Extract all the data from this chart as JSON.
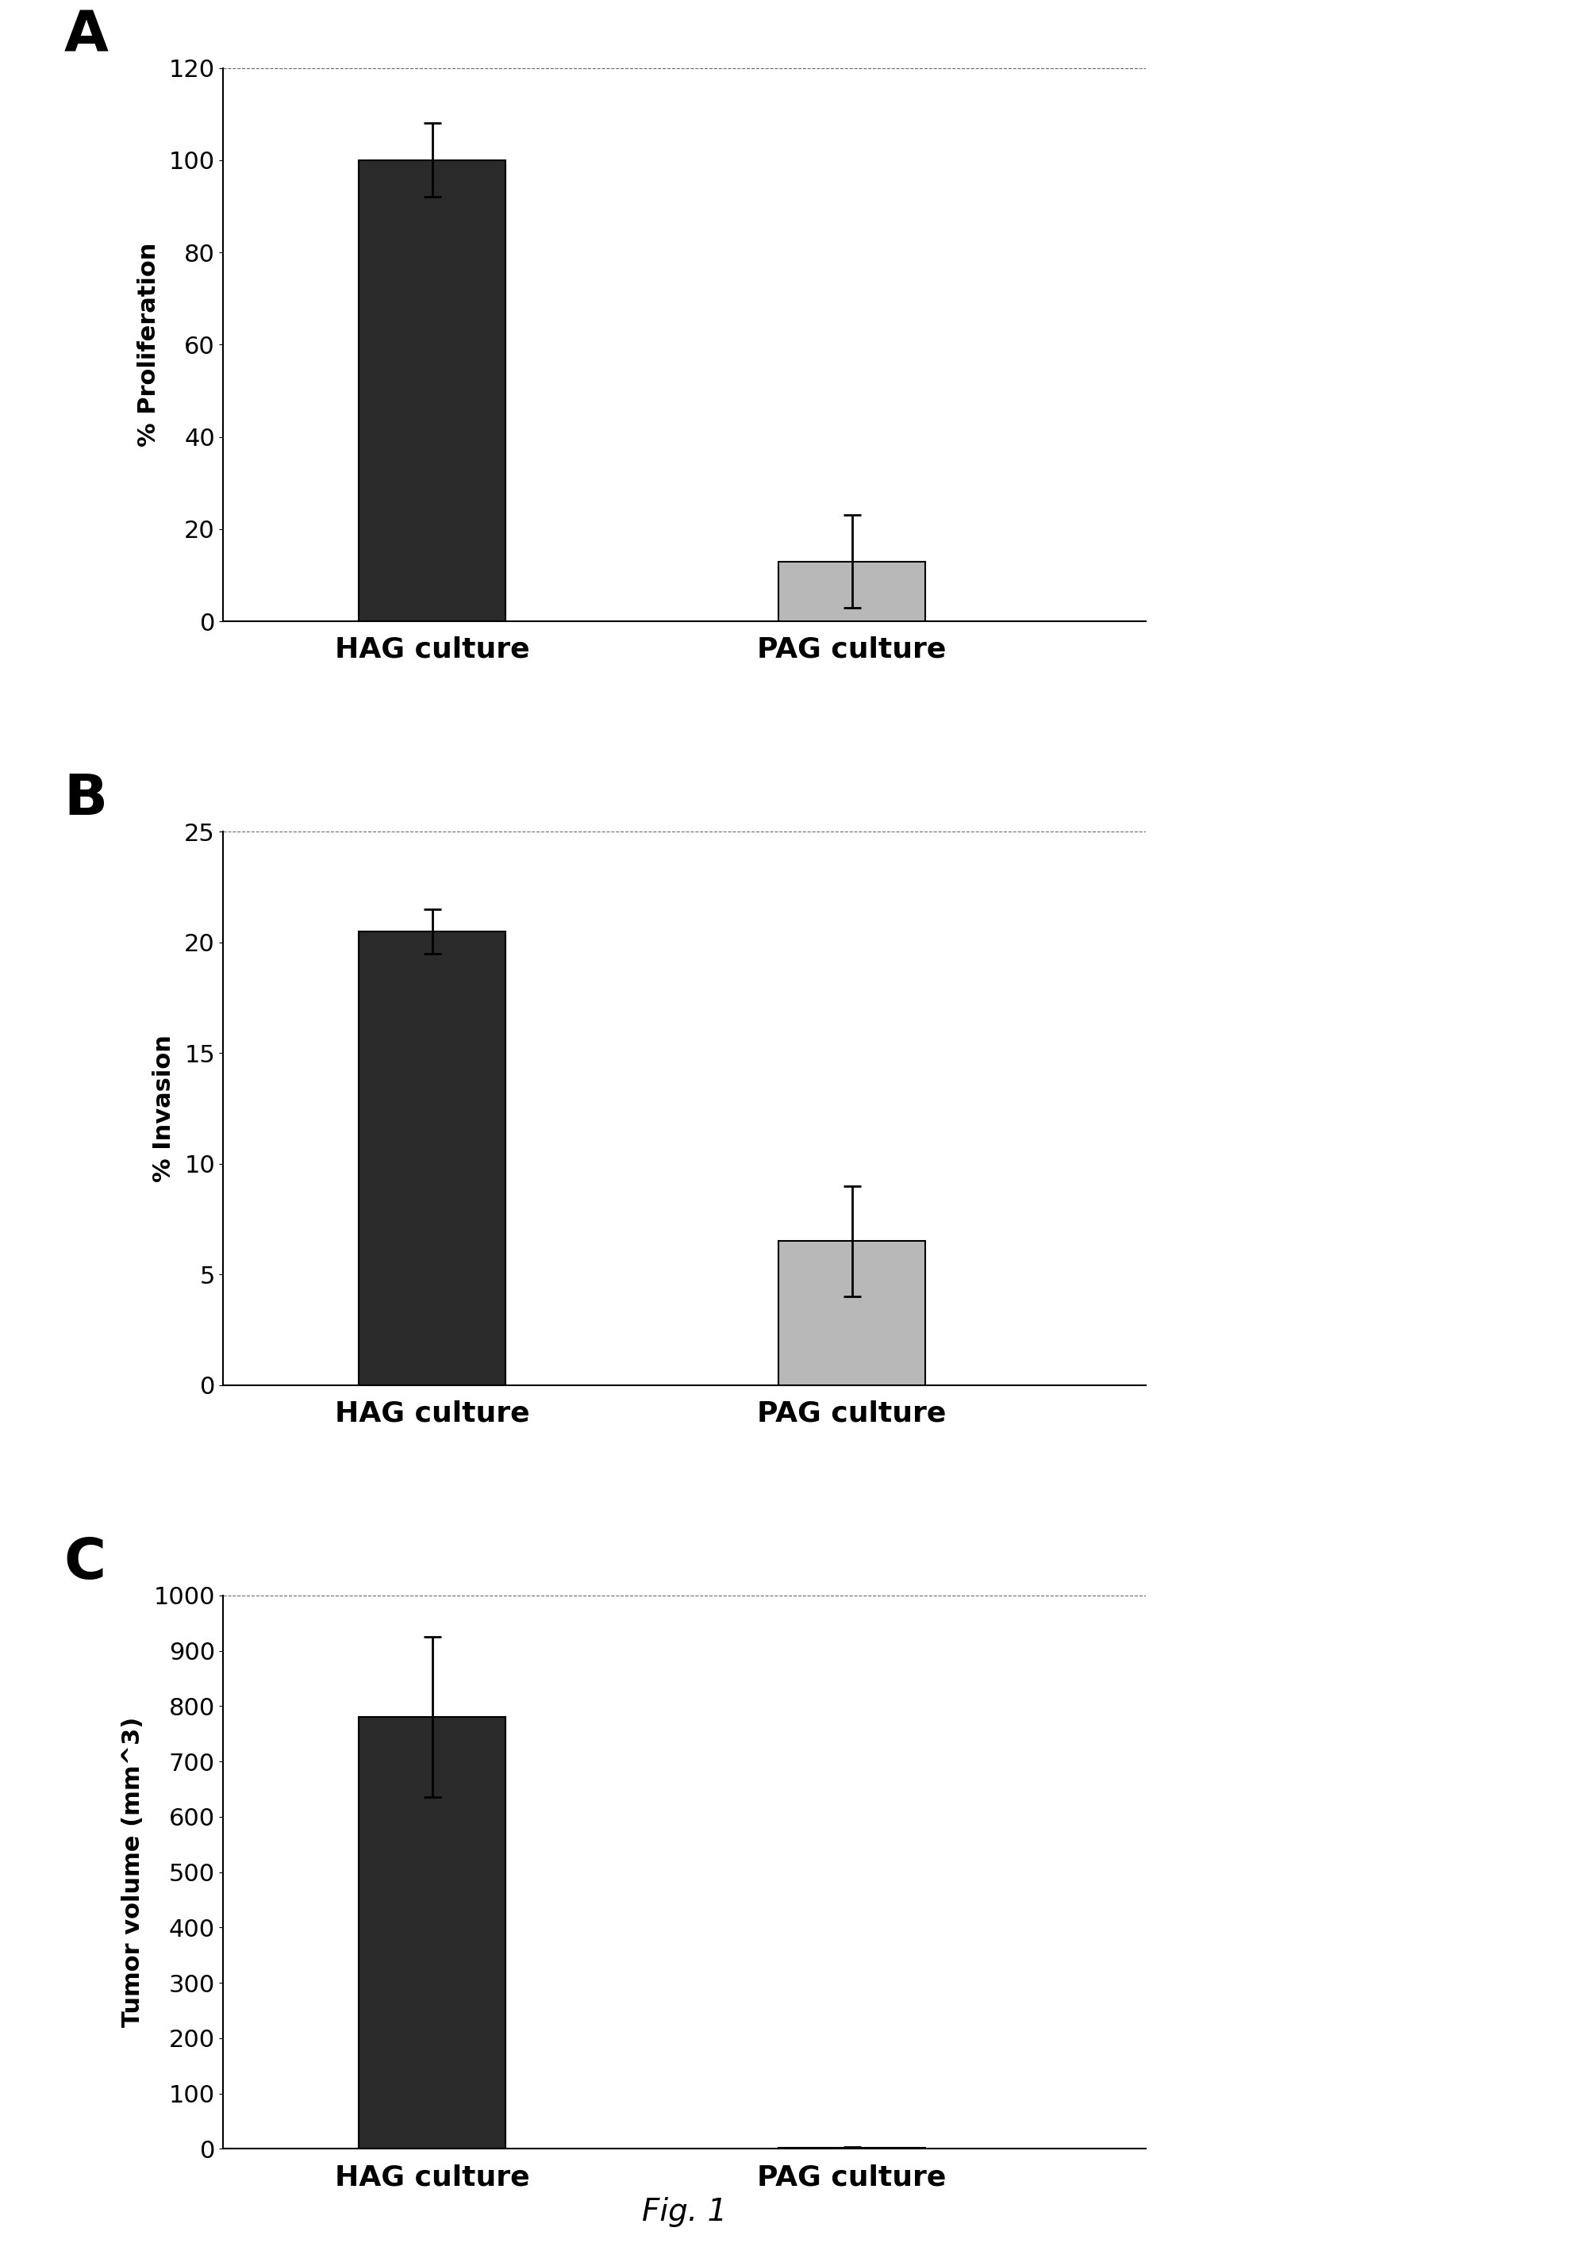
{
  "panel_A": {
    "label": "A",
    "categories": [
      "HAG culture",
      "PAG culture"
    ],
    "values": [
      100,
      13
    ],
    "errors": [
      8,
      10
    ],
    "ylabel": "% Proliferation",
    "ylim": [
      0,
      120
    ],
    "yticks": [
      0,
      20,
      40,
      60,
      80,
      100,
      120
    ],
    "bar_colors": [
      "#2a2a2a",
      "#b8b8b8"
    ],
    "bar_edgecolor": "#000000",
    "bar_width": 0.35
  },
  "panel_B": {
    "label": "B",
    "categories": [
      "HAG culture",
      "PAG culture"
    ],
    "values": [
      20.5,
      6.5
    ],
    "errors": [
      1.0,
      2.5
    ],
    "ylabel": "% Invasion",
    "ylim": [
      0,
      25
    ],
    "yticks": [
      0,
      5,
      10,
      15,
      20,
      25
    ],
    "bar_colors": [
      "#2a2a2a",
      "#b8b8b8"
    ],
    "bar_edgecolor": "#000000",
    "bar_width": 0.35
  },
  "panel_C": {
    "label": "C",
    "categories": [
      "HAG culture",
      "PAG culture"
    ],
    "values": [
      780,
      2
    ],
    "errors": [
      145,
      1
    ],
    "ylabel": "Tumor volume (mm^3)",
    "ylim": [
      0,
      1000
    ],
    "yticks": [
      0,
      100,
      200,
      300,
      400,
      500,
      600,
      700,
      800,
      900,
      1000
    ],
    "bar_colors": [
      "#2a2a2a",
      "#b8b8b8"
    ],
    "bar_edgecolor": "#000000",
    "bar_width": 0.35
  },
  "fig_label": "Fig. 1",
  "background_color": "#ffffff",
  "panel_label_fontsize": 52,
  "tick_fontsize": 22,
  "ylabel_fontsize": 22,
  "xlabel_fontsize": 26,
  "fig_label_fontsize": 28
}
